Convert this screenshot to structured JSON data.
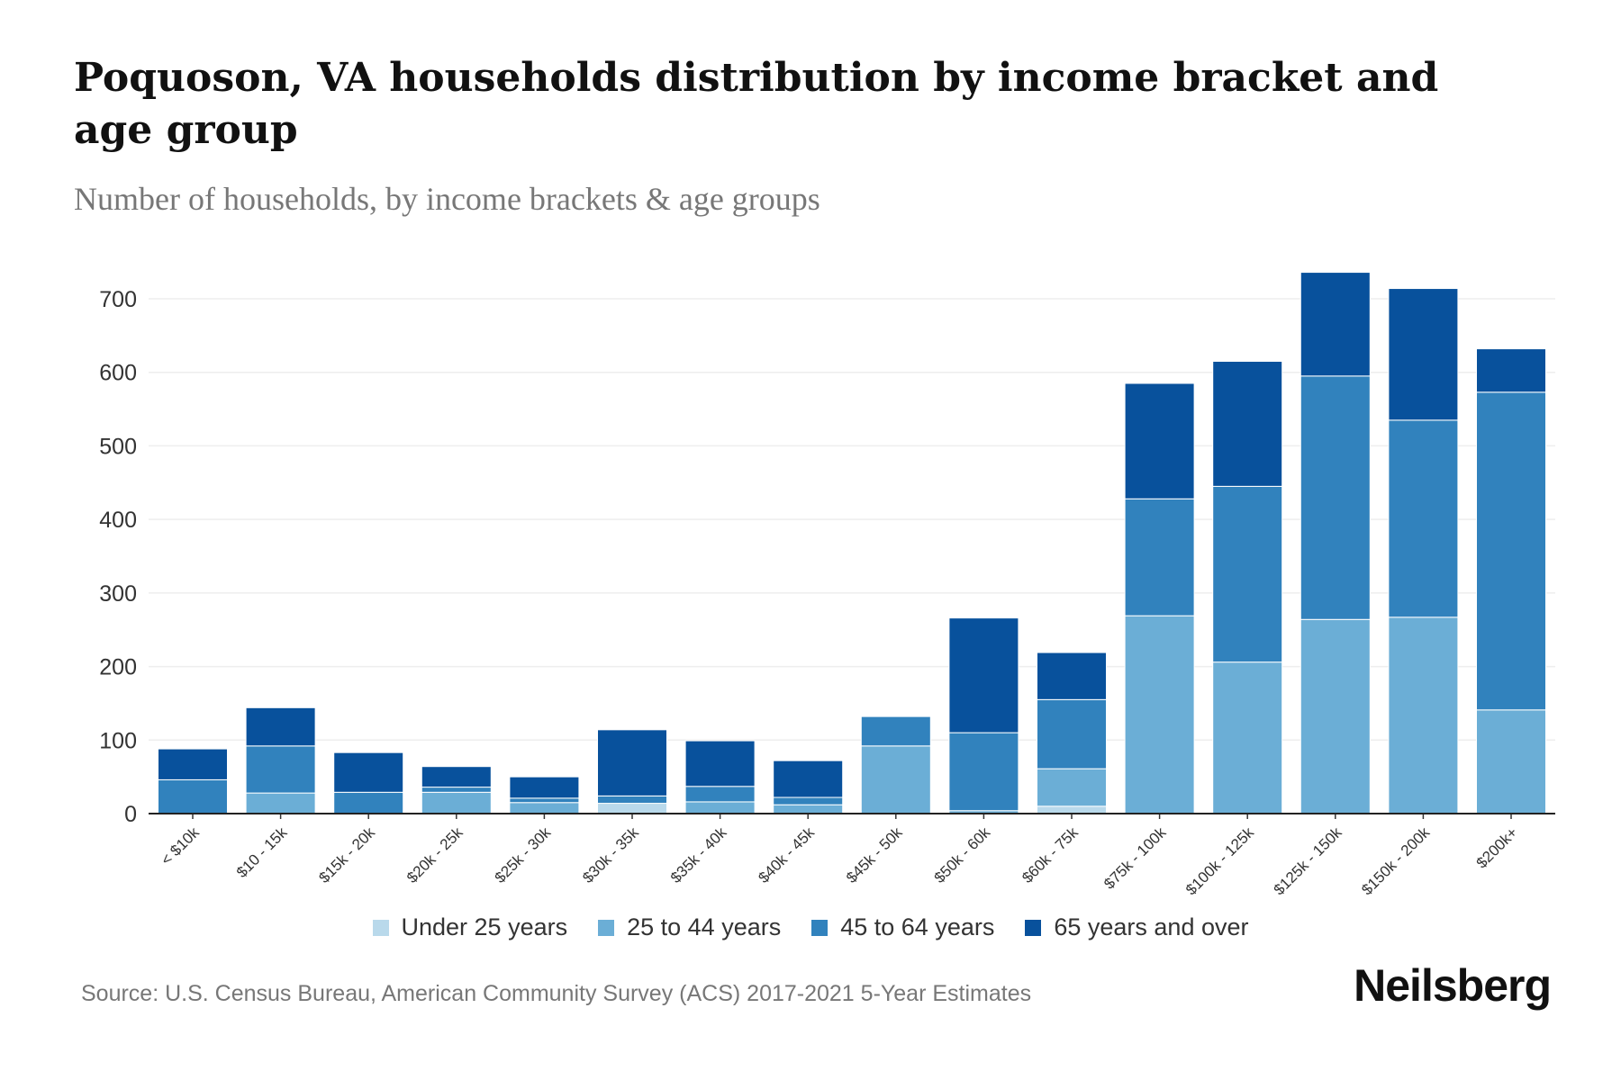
{
  "chart_data": {
    "type": "bar",
    "stacked": true,
    "title": "Poquoson, VA households distribution by income bracket and age group",
    "subtitle": "Number of households, by income brackets & age groups",
    "xlabel": "",
    "ylabel": "",
    "ylim": [
      0,
      750
    ],
    "yticks": [
      0,
      100,
      200,
      300,
      400,
      500,
      600,
      700
    ],
    "grid": true,
    "legend_position": "bottom",
    "categories": [
      "< $10k",
      "$10 - 15k",
      "$15k - 20k",
      "$20k - 25k",
      "$25k - 30k",
      "$30k - 35k",
      "$35k - 40k",
      "$40k - 45k",
      "$45k - 50k",
      "$50k - 60k",
      "$60k - 75k",
      "$75k - 100k",
      "$100k - 125k",
      "$125k - 150k",
      "$150k - 200k",
      "$200k+"
    ],
    "series": [
      {
        "name": "Under 25 years",
        "color": "#b9d9eb",
        "values": [
          0,
          0,
          0,
          0,
          0,
          14,
          0,
          0,
          0,
          0,
          10,
          0,
          0,
          0,
          0,
          0
        ]
      },
      {
        "name": "25 to 44 years",
        "color": "#6baed6",
        "values": [
          0,
          28,
          0,
          29,
          15,
          0,
          16,
          12,
          92,
          4,
          51,
          269,
          206,
          264,
          267,
          141
        ]
      },
      {
        "name": "45 to 64 years",
        "color": "#3182bd",
        "values": [
          46,
          64,
          29,
          7,
          6,
          10,
          21,
          10,
          40,
          106,
          94,
          159,
          239,
          331,
          268,
          432
        ]
      },
      {
        "name": "65 years and over",
        "color": "#08519c",
        "values": [
          42,
          52,
          54,
          28,
          29,
          90,
          62,
          50,
          0,
          156,
          64,
          157,
          170,
          141,
          179,
          59
        ]
      }
    ]
  },
  "source": "Source: U.S. Census Bureau, American Community Survey (ACS) 2017-2021 5-Year Estimates",
  "brand": "Neilsberg"
}
